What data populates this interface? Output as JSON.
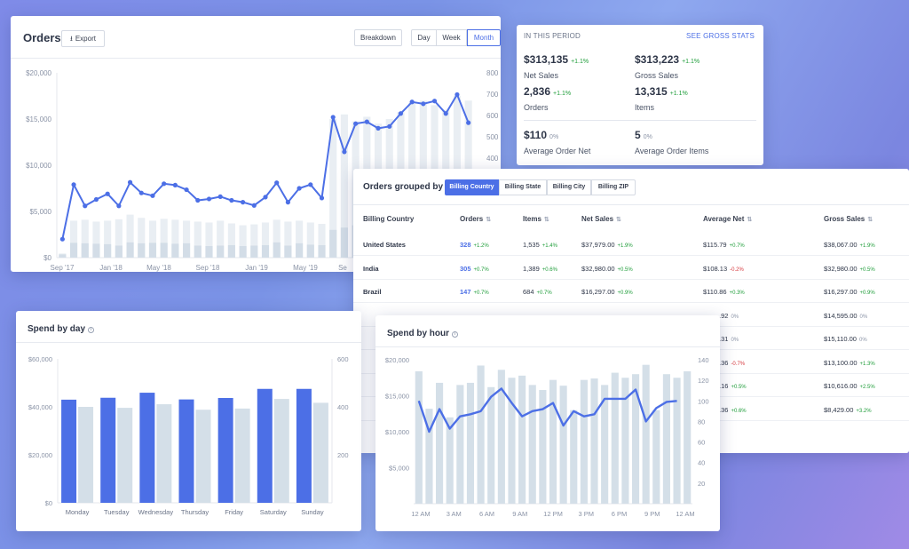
{
  "orders_card": {
    "title": "Orders",
    "export_label": "Export",
    "export_icon": "download-icon",
    "breakdown_label": "Breakdown",
    "periods": [
      "Day",
      "Week",
      "Month"
    ],
    "active_period": "Month"
  },
  "period_stats": {
    "heading": "IN THIS PERIOD",
    "link": "SEE GROSS STATS",
    "stats": [
      {
        "value": "$313,135",
        "change": "+1.1%",
        "label": "Net Sales",
        "trend": "up"
      },
      {
        "value": "$313,223",
        "change": "+1.1%",
        "label": "Gross Sales",
        "trend": "up"
      },
      {
        "value": "2,836",
        "change": "+1.1%",
        "label": "Orders",
        "trend": "up"
      },
      {
        "value": "13,315",
        "change": "+1.1%",
        "label": "Items",
        "trend": "up"
      },
      {
        "value": "$110",
        "change": "0%",
        "label": "Average Order Net",
        "trend": "flat"
      },
      {
        "value": "5",
        "change": "0%",
        "label": "Average Order Items",
        "trend": "flat"
      }
    ]
  },
  "grouped": {
    "title": "Orders grouped by",
    "tabs": [
      "Billing Country",
      "Billing State",
      "Billing City",
      "Billing ZIP"
    ],
    "active_tab": "Billing Country",
    "columns": [
      "Billing Country",
      "Orders",
      "Items",
      "Net Sales",
      "Average Net",
      "Gross Sales"
    ],
    "rows": [
      {
        "country": "United States",
        "orders": "328",
        "orders_change": "+1.2%",
        "items": "1,535",
        "items_change": "+1.4%",
        "net": "$37,979.00",
        "net_change": "+1.9%",
        "avg": "$115.79",
        "avg_change": "+0.7%",
        "avg_trend": "up",
        "gross": "$38,067.00",
        "gross_change": "+1.9%",
        "gross_trend": "up"
      },
      {
        "country": "India",
        "orders": "305",
        "orders_change": "+0.7%",
        "items": "1,389",
        "items_change": "+0.6%",
        "net": "$32,980.00",
        "net_change": "+0.5%",
        "avg": "$108.13",
        "avg_change": "-0.2%",
        "avg_trend": "down",
        "gross": "$32,980.00",
        "gross_change": "+0.5%",
        "gross_trend": "up"
      },
      {
        "country": "Brazil",
        "orders": "147",
        "orders_change": "+0.7%",
        "items": "684",
        "items_change": "+0.7%",
        "net": "$16,297.00",
        "net_change": "+0.9%",
        "avg": "$110.86",
        "avg_change": "+0.3%",
        "avg_trend": "up",
        "gross": "$16,297.00",
        "gross_change": "+0.9%",
        "gross_trend": "up"
      },
      {
        "avg": ".92",
        "avg_change": "0%",
        "avg_trend": "flat",
        "gross": "$14,595.00",
        "gross_change": "0%",
        "gross_trend": "flat"
      },
      {
        "avg": ".31",
        "avg_change": "0%",
        "avg_trend": "flat",
        "gross": "$15,110.00",
        "gross_change": "0%",
        "gross_trend": "flat"
      },
      {
        "avg": ".36",
        "avg_change": "-0.7%",
        "avg_trend": "down",
        "gross": "$13,100.00",
        "gross_change": "+1.3%",
        "gross_trend": "up"
      },
      {
        "avg": ".16",
        "avg_change": "+0.5%",
        "avg_trend": "up",
        "gross": "$10,616.00",
        "gross_change": "+2.5%",
        "gross_trend": "up"
      },
      {
        "avg": ".36",
        "avg_change": "+0.6%",
        "avg_trend": "up",
        "gross": "$8,429.00",
        "gross_change": "+3.2%",
        "gross_trend": "up"
      }
    ]
  },
  "spend_by_day": {
    "title": "Spend by day"
  },
  "spend_by_hour": {
    "title": "Spend by hour"
  },
  "chart_data": [
    {
      "id": "orders",
      "type": "bar+line",
      "x_tick_labels": [
        "Sep '17",
        "Jan '18",
        "May '18",
        "Sep '18",
        "Jan '19",
        "May '19",
        "Se"
      ],
      "y_left_ticks": [
        "$0",
        "$5,000",
        "$10,000",
        "$15,000",
        "$20,000"
      ],
      "y_left_range": [
        0,
        20000
      ],
      "y_right_ticks": [
        "400",
        "500",
        "600",
        "700",
        "800"
      ],
      "line_values": [
        4000,
        15800,
        11200,
        12600,
        13800,
        11200,
        16300,
        14000,
        13400,
        16000,
        15700,
        14700,
        12400,
        12700,
        13200,
        12400,
        12000,
        11300,
        13100,
        16200,
        12000,
        15000,
        15800,
        12900,
        30400,
        22900,
        29000,
        29400,
        28000,
        28400,
        31200,
        33700,
        33300,
        33900,
        31200,
        35300,
        29200
      ],
      "bar_values": [
        900,
        8000,
        8200,
        7800,
        8000,
        8300,
        9300,
        8600,
        8000,
        8400,
        8200,
        8000,
        7800,
        7600,
        8000,
        7400,
        7000,
        7200,
        7600,
        8200,
        7800,
        8000,
        7600,
        7300,
        30000,
        31000,
        29500,
        30500,
        29000,
        30000,
        31500,
        33500,
        34000,
        33000,
        32000,
        35000,
        34000
      ],
      "bar_secondary_values": [
        700,
        3200,
        3100,
        3000,
        2900,
        2600,
        3300,
        3100,
        3200,
        3200,
        3000,
        3100,
        2600,
        2500,
        2600,
        2700,
        2500,
        2600,
        2700,
        3300,
        2600,
        3100,
        2800,
        2700,
        6000,
        6500,
        7000,
        6000,
        6500,
        7000,
        6500,
        7000,
        6000,
        7000,
        6500,
        6000,
        6500
      ]
    },
    {
      "id": "spend_by_day",
      "type": "bar",
      "categories": [
        "Monday",
        "Tuesday",
        "Wednesday",
        "Thursday",
        "Friday",
        "Saturday",
        "Sunday"
      ],
      "y_left_ticks": [
        "$0",
        "$20,000",
        "$40,000",
        "$60,000"
      ],
      "y_left_range": [
        0,
        60000
      ],
      "y_right_ticks": [
        "200",
        "400",
        "600"
      ],
      "y_right_range": [
        0,
        600
      ],
      "series": [
        {
          "values": [
            43000,
            43800,
            45900,
            43100,
            43700,
            47500,
            47500
          ],
          "color": "#4c6fe6"
        },
        {
          "values": [
            400,
            396,
            411,
            388,
            393,
            433,
            417
          ],
          "color": "#d4dfe8"
        }
      ]
    },
    {
      "id": "spend_by_hour",
      "type": "bar+line",
      "x_tick_labels": [
        "12 AM",
        "3 AM",
        "6 AM",
        "9 AM",
        "12 PM",
        "3 PM",
        "6 PM",
        "9 PM",
        "12 AM"
      ],
      "y_left_ticks": [
        "$5,000",
        "$10,000",
        "$15,000",
        "$20,000"
      ],
      "y_left_range": [
        0,
        20000
      ],
      "y_right_ticks": [
        "20",
        "40",
        "60",
        "80",
        "100",
        "120",
        "140"
      ],
      "y_right_range": [
        0,
        140
      ],
      "bar_values": [
        18400,
        13200,
        16800,
        12000,
        16500,
        16800,
        19200,
        16200,
        18600,
        17500,
        17800,
        16500,
        15800,
        17200,
        16400,
        13000,
        17200,
        17400,
        16500,
        18200,
        17500,
        18000,
        19300,
        13000,
        18000,
        17500,
        18400
      ],
      "line_values": [
        100,
        70,
        92,
        73,
        85,
        87,
        90,
        104,
        112,
        98,
        85,
        90,
        92,
        98,
        76,
        90,
        85,
        87,
        102,
        102,
        102,
        111,
        80,
        93,
        99,
        100
      ]
    }
  ]
}
